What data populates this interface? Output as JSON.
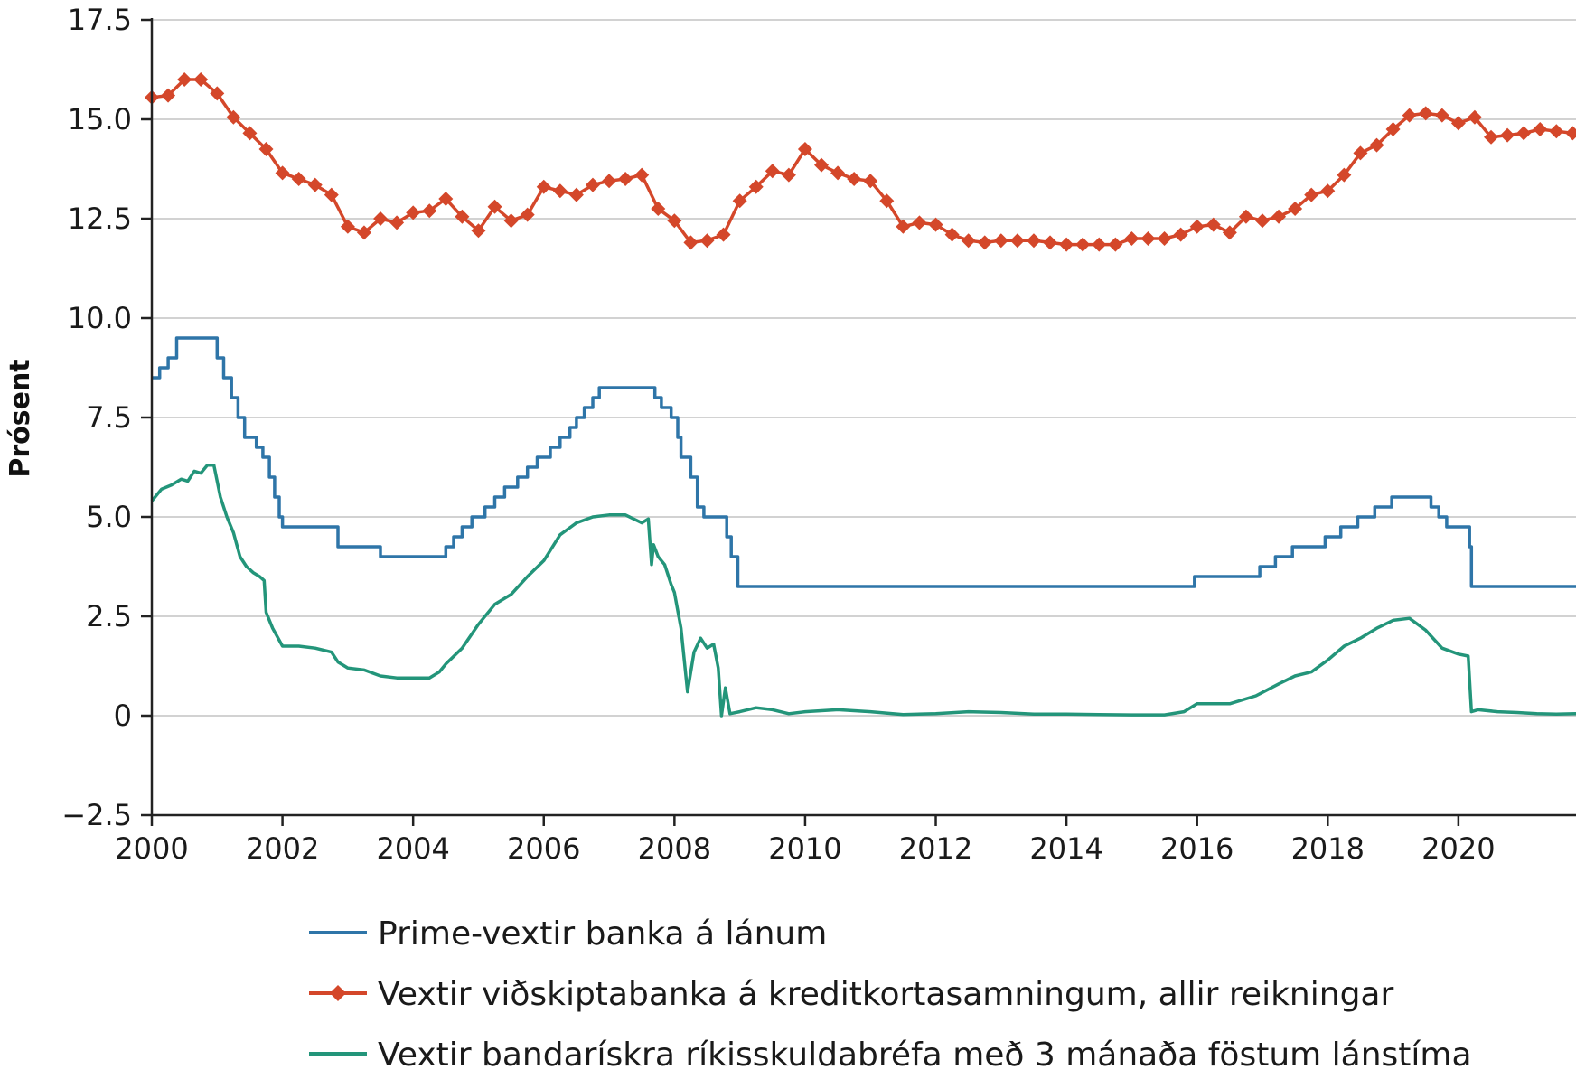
{
  "chart_data": {
    "type": "line",
    "xlabel": "",
    "ylabel": "Prósent",
    "xlim": [
      2000,
      2021.8
    ],
    "ylim": [
      -2.5,
      17.5
    ],
    "x_ticks": [
      "2000",
      "2002",
      "2004",
      "2006",
      "2008",
      "2010",
      "2012",
      "2014",
      "2016",
      "2018",
      "2020"
    ],
    "y_ticks": [
      "−2.5",
      "0",
      "2.5",
      "5.0",
      "7.5",
      "10.0",
      "12.5",
      "15.0",
      "17.5"
    ],
    "grid": "horizontal",
    "legend_position": "bottom",
    "series": [
      {
        "name": "Prime-vextir banka á lánum",
        "color": "#2e75a8",
        "marker": "none",
        "step": true,
        "points": [
          [
            2000.0,
            8.5
          ],
          [
            2000.12,
            8.75
          ],
          [
            2000.25,
            9.0
          ],
          [
            2000.38,
            9.5
          ],
          [
            2001.0,
            9.0
          ],
          [
            2001.1,
            8.5
          ],
          [
            2001.22,
            8.0
          ],
          [
            2001.32,
            7.5
          ],
          [
            2001.42,
            7.0
          ],
          [
            2001.6,
            6.75
          ],
          [
            2001.7,
            6.5
          ],
          [
            2001.8,
            6.0
          ],
          [
            2001.88,
            5.5
          ],
          [
            2001.95,
            5.0
          ],
          [
            2002.0,
            4.75
          ],
          [
            2002.85,
            4.25
          ],
          [
            2003.5,
            4.0
          ],
          [
            2004.5,
            4.25
          ],
          [
            2004.62,
            4.5
          ],
          [
            2004.75,
            4.75
          ],
          [
            2004.9,
            5.0
          ],
          [
            2005.1,
            5.25
          ],
          [
            2005.25,
            5.5
          ],
          [
            2005.4,
            5.75
          ],
          [
            2005.6,
            6.0
          ],
          [
            2005.75,
            6.25
          ],
          [
            2005.9,
            6.5
          ],
          [
            2006.1,
            6.75
          ],
          [
            2006.25,
            7.0
          ],
          [
            2006.4,
            7.25
          ],
          [
            2006.5,
            7.5
          ],
          [
            2006.62,
            7.75
          ],
          [
            2006.75,
            8.0
          ],
          [
            2006.85,
            8.25
          ],
          [
            2007.7,
            8.0
          ],
          [
            2007.8,
            7.75
          ],
          [
            2007.95,
            7.5
          ],
          [
            2008.05,
            7.0
          ],
          [
            2008.1,
            6.5
          ],
          [
            2008.25,
            6.0
          ],
          [
            2008.35,
            5.25
          ],
          [
            2008.45,
            5.0
          ],
          [
            2008.8,
            4.5
          ],
          [
            2008.87,
            4.0
          ],
          [
            2008.97,
            3.25
          ],
          [
            2015.96,
            3.5
          ],
          [
            2016.96,
            3.75
          ],
          [
            2017.2,
            4.0
          ],
          [
            2017.46,
            4.25
          ],
          [
            2017.96,
            4.5
          ],
          [
            2018.2,
            4.75
          ],
          [
            2018.46,
            5.0
          ],
          [
            2018.72,
            5.25
          ],
          [
            2018.98,
            5.5
          ],
          [
            2019.58,
            5.25
          ],
          [
            2019.7,
            5.0
          ],
          [
            2019.82,
            4.75
          ],
          [
            2020.17,
            4.25
          ],
          [
            2020.2,
            3.25
          ],
          [
            2021.8,
            3.25
          ]
        ]
      },
      {
        "name": "Vextir viðskiptabanka á kreditkortasamningum, allir reikningar",
        "color": "#d4472a",
        "marker": "diamond",
        "step": false,
        "points": [
          [
            2000.0,
            15.55
          ],
          [
            2000.25,
            15.6
          ],
          [
            2000.5,
            16.0
          ],
          [
            2000.75,
            16.0
          ],
          [
            2001.0,
            15.65
          ],
          [
            2001.25,
            15.05
          ],
          [
            2001.5,
            14.65
          ],
          [
            2001.75,
            14.25
          ],
          [
            2002.0,
            13.65
          ],
          [
            2002.25,
            13.5
          ],
          [
            2002.5,
            13.35
          ],
          [
            2002.75,
            13.1
          ],
          [
            2003.0,
            12.3
          ],
          [
            2003.25,
            12.15
          ],
          [
            2003.5,
            12.5
          ],
          [
            2003.75,
            12.4
          ],
          [
            2004.0,
            12.65
          ],
          [
            2004.25,
            12.7
          ],
          [
            2004.5,
            13.0
          ],
          [
            2004.75,
            12.55
          ],
          [
            2005.0,
            12.2
          ],
          [
            2005.25,
            12.8
          ],
          [
            2005.5,
            12.45
          ],
          [
            2005.75,
            12.6
          ],
          [
            2006.0,
            13.3
          ],
          [
            2006.25,
            13.2
          ],
          [
            2006.5,
            13.1
          ],
          [
            2006.75,
            13.35
          ],
          [
            2007.0,
            13.45
          ],
          [
            2007.25,
            13.5
          ],
          [
            2007.5,
            13.6
          ],
          [
            2007.75,
            12.75
          ],
          [
            2008.0,
            12.45
          ],
          [
            2008.25,
            11.9
          ],
          [
            2008.5,
            11.95
          ],
          [
            2008.75,
            12.1
          ],
          [
            2009.0,
            12.95
          ],
          [
            2009.25,
            13.3
          ],
          [
            2009.5,
            13.7
          ],
          [
            2009.75,
            13.6
          ],
          [
            2010.0,
            14.25
          ],
          [
            2010.25,
            13.85
          ],
          [
            2010.5,
            13.65
          ],
          [
            2010.75,
            13.5
          ],
          [
            2011.0,
            13.45
          ],
          [
            2011.25,
            12.95
          ],
          [
            2011.5,
            12.3
          ],
          [
            2011.75,
            12.4
          ],
          [
            2012.0,
            12.35
          ],
          [
            2012.25,
            12.1
          ],
          [
            2012.5,
            11.95
          ],
          [
            2012.75,
            11.9
          ],
          [
            2013.0,
            11.95
          ],
          [
            2013.25,
            11.95
          ],
          [
            2013.5,
            11.95
          ],
          [
            2013.75,
            11.9
          ],
          [
            2014.0,
            11.85
          ],
          [
            2014.25,
            11.85
          ],
          [
            2014.5,
            11.85
          ],
          [
            2014.75,
            11.85
          ],
          [
            2015.0,
            12.0
          ],
          [
            2015.25,
            12.0
          ],
          [
            2015.5,
            12.0
          ],
          [
            2015.75,
            12.1
          ],
          [
            2016.0,
            12.3
          ],
          [
            2016.25,
            12.35
          ],
          [
            2016.5,
            12.15
          ],
          [
            2016.75,
            12.55
          ],
          [
            2017.0,
            12.45
          ],
          [
            2017.25,
            12.55
          ],
          [
            2017.5,
            12.75
          ],
          [
            2017.75,
            13.1
          ],
          [
            2018.0,
            13.2
          ],
          [
            2018.25,
            13.6
          ],
          [
            2018.5,
            14.15
          ],
          [
            2018.75,
            14.35
          ],
          [
            2019.0,
            14.75
          ],
          [
            2019.25,
            15.1
          ],
          [
            2019.5,
            15.15
          ],
          [
            2019.75,
            15.1
          ],
          [
            2020.0,
            14.9
          ],
          [
            2020.25,
            15.05
          ],
          [
            2020.5,
            14.55
          ],
          [
            2020.75,
            14.6
          ],
          [
            2021.0,
            14.65
          ],
          [
            2021.25,
            14.75
          ],
          [
            2021.5,
            14.7
          ],
          [
            2021.75,
            14.65
          ]
        ]
      },
      {
        "name": "Vextir bandarískra ríkisskuldabréfa með 3 mánaða föstum lánstíma",
        "color": "#23957a",
        "marker": "none",
        "step": false,
        "points": [
          [
            2000.0,
            5.4
          ],
          [
            2000.15,
            5.7
          ],
          [
            2000.3,
            5.8
          ],
          [
            2000.45,
            5.95
          ],
          [
            2000.55,
            5.9
          ],
          [
            2000.65,
            6.15
          ],
          [
            2000.75,
            6.1
          ],
          [
            2000.85,
            6.3
          ],
          [
            2000.95,
            6.3
          ],
          [
            2001.05,
            5.5
          ],
          [
            2001.15,
            5.0
          ],
          [
            2001.25,
            4.6
          ],
          [
            2001.35,
            4.0
          ],
          [
            2001.45,
            3.75
          ],
          [
            2001.55,
            3.6
          ],
          [
            2001.65,
            3.5
          ],
          [
            2001.72,
            3.4
          ],
          [
            2001.75,
            2.6
          ],
          [
            2001.85,
            2.2
          ],
          [
            2002.0,
            1.75
          ],
          [
            2002.25,
            1.75
          ],
          [
            2002.5,
            1.7
          ],
          [
            2002.75,
            1.6
          ],
          [
            2002.85,
            1.35
          ],
          [
            2003.0,
            1.2
          ],
          [
            2003.25,
            1.15
          ],
          [
            2003.5,
            1.0
          ],
          [
            2003.75,
            0.95
          ],
          [
            2004.0,
            0.95
          ],
          [
            2004.25,
            0.95
          ],
          [
            2004.4,
            1.1
          ],
          [
            2004.5,
            1.3
          ],
          [
            2004.75,
            1.7
          ],
          [
            2005.0,
            2.3
          ],
          [
            2005.25,
            2.8
          ],
          [
            2005.5,
            3.05
          ],
          [
            2005.75,
            3.5
          ],
          [
            2006.0,
            3.9
          ],
          [
            2006.25,
            4.55
          ],
          [
            2006.5,
            4.85
          ],
          [
            2006.75,
            5.0
          ],
          [
            2007.0,
            5.05
          ],
          [
            2007.25,
            5.05
          ],
          [
            2007.5,
            4.85
          ],
          [
            2007.6,
            4.95
          ],
          [
            2007.65,
            3.8
          ],
          [
            2007.68,
            4.3
          ],
          [
            2007.75,
            4.0
          ],
          [
            2007.85,
            3.8
          ],
          [
            2007.95,
            3.3
          ],
          [
            2008.0,
            3.1
          ],
          [
            2008.1,
            2.2
          ],
          [
            2008.15,
            1.4
          ],
          [
            2008.2,
            0.6
          ],
          [
            2008.3,
            1.6
          ],
          [
            2008.4,
            1.95
          ],
          [
            2008.5,
            1.7
          ],
          [
            2008.6,
            1.8
          ],
          [
            2008.67,
            1.2
          ],
          [
            2008.72,
            0.0
          ],
          [
            2008.78,
            0.7
          ],
          [
            2008.85,
            0.05
          ],
          [
            2009.0,
            0.1
          ],
          [
            2009.25,
            0.2
          ],
          [
            2009.5,
            0.15
          ],
          [
            2009.75,
            0.05
          ],
          [
            2010.0,
            0.1
          ],
          [
            2010.5,
            0.15
          ],
          [
            2011.0,
            0.1
          ],
          [
            2011.5,
            0.03
          ],
          [
            2012.0,
            0.05
          ],
          [
            2012.5,
            0.1
          ],
          [
            2013.0,
            0.08
          ],
          [
            2013.5,
            0.04
          ],
          [
            2014.0,
            0.04
          ],
          [
            2014.5,
            0.03
          ],
          [
            2015.0,
            0.02
          ],
          [
            2015.5,
            0.02
          ],
          [
            2015.8,
            0.1
          ],
          [
            2016.0,
            0.3
          ],
          [
            2016.5,
            0.3
          ],
          [
            2016.9,
            0.5
          ],
          [
            2017.25,
            0.8
          ],
          [
            2017.5,
            1.0
          ],
          [
            2017.75,
            1.1
          ],
          [
            2018.0,
            1.4
          ],
          [
            2018.25,
            1.75
          ],
          [
            2018.5,
            1.95
          ],
          [
            2018.75,
            2.2
          ],
          [
            2019.0,
            2.4
          ],
          [
            2019.25,
            2.45
          ],
          [
            2019.5,
            2.15
          ],
          [
            2019.75,
            1.7
          ],
          [
            2020.0,
            1.55
          ],
          [
            2020.15,
            1.5
          ],
          [
            2020.2,
            0.1
          ],
          [
            2020.3,
            0.15
          ],
          [
            2020.6,
            0.1
          ],
          [
            2020.9,
            0.08
          ],
          [
            2021.2,
            0.05
          ],
          [
            2021.5,
            0.04
          ],
          [
            2021.8,
            0.05
          ]
        ]
      }
    ]
  }
}
